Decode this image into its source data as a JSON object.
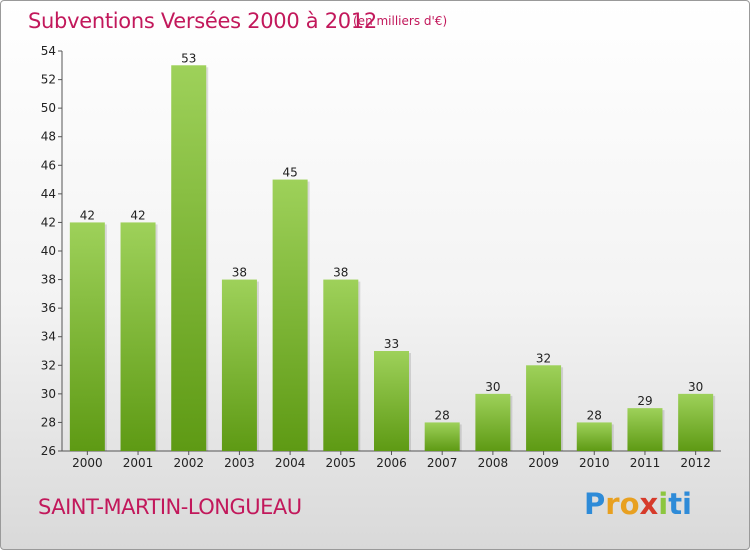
{
  "header": {
    "title": "Subventions Versées 2000 à 2012",
    "unit": "(en milliers d'€)"
  },
  "footer": {
    "commune": "SAINT-MARTIN-LONGUEAU",
    "logo_letters": [
      "P",
      "r",
      "o",
      "x",
      "i",
      "ti"
    ]
  },
  "colors": {
    "bar_top": "#9ed15a",
    "bar_bottom": "#5e9a14",
    "title": "#c2185b"
  },
  "chart_data": {
    "type": "bar",
    "categories": [
      "2000",
      "2001",
      "2002",
      "2003",
      "2004",
      "2005",
      "2006",
      "2007",
      "2008",
      "2009",
      "2010",
      "2011",
      "2012"
    ],
    "values": [
      42,
      42,
      53,
      38,
      45,
      38,
      33,
      28,
      30,
      32,
      28,
      29,
      30
    ],
    "ylim": [
      26,
      54
    ],
    "yticks": [
      26,
      28,
      30,
      32,
      34,
      36,
      38,
      40,
      42,
      44,
      46,
      48,
      50,
      52,
      54
    ],
    "grid": false
  }
}
